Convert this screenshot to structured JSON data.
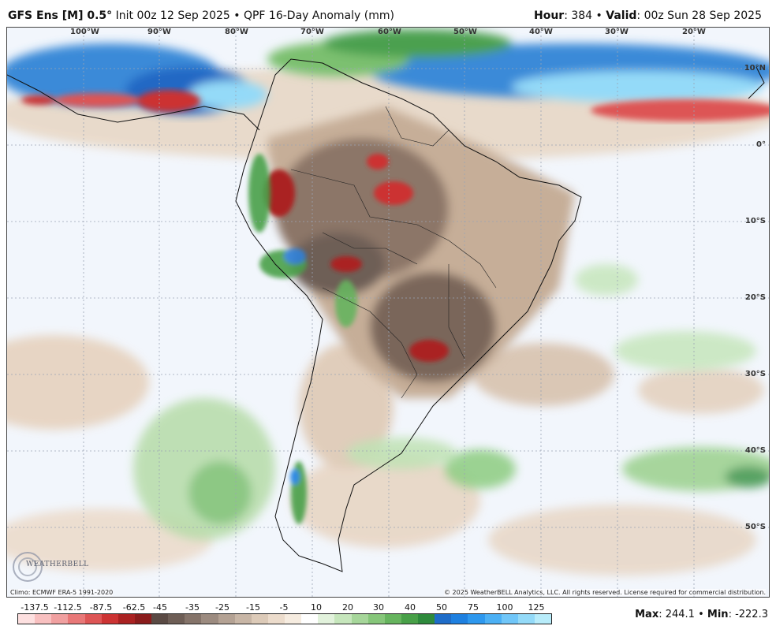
{
  "header": {
    "model": "GFS Ens [M] 0.5",
    "degree": "°",
    "init": "Init 00z 12 Sep 2025",
    "sep": "•",
    "product": "QPF 16-Day Anomaly (mm)",
    "hour_label": "Hour",
    "hour_value": ": 384",
    "valid_label": "Valid",
    "valid_value": ": 00z Sun 28 Sep 2025"
  },
  "map": {
    "lon_labels": [
      "100°W",
      "90°W",
      "80°W",
      "70°W",
      "60°W",
      "50°W",
      "40°W",
      "30°W",
      "20°W"
    ],
    "lat_labels": [
      "10°N",
      "0°",
      "10°S",
      "20°S",
      "30°S",
      "40°S",
      "50°S"
    ],
    "climo": "Climo: ECMWF ERA-5 1991-2020",
    "copyright": "© 2025 WeatherBELL Analytics, LLC. All rights reserved. License required for commercial distribution.",
    "logo_text": "WEATHERBELL"
  },
  "colorbar": {
    "ticks": [
      "-137.5",
      "-112.5",
      "-87.5",
      "-62.5",
      "-45",
      "-35",
      "-25",
      "-15",
      "-5",
      "10",
      "20",
      "30",
      "40",
      "50",
      "75",
      "100",
      "125"
    ],
    "colors": [
      "#fde0e0",
      "#f8c0c0",
      "#f0a0a0",
      "#e87878",
      "#dd5555",
      "#cc3333",
      "#aa2222",
      "#8a1c1c",
      "#5a4a44",
      "#6e5e56",
      "#85746a",
      "#9c8b80",
      "#b4a294",
      "#c8b6a6",
      "#dccab8",
      "#ecdccc",
      "#f6ece0",
      "#ffffff",
      "#e2f2dc",
      "#c6e6bc",
      "#a6d69a",
      "#86c67a",
      "#66b45e",
      "#48a048",
      "#2e8a3c",
      "#1e6cc8",
      "#1e80e0",
      "#2e98ee",
      "#4cb0f4",
      "#70c6f8",
      "#94daf8",
      "#b8ecfa"
    ],
    "max_label": "Max",
    "max_value": "244.1",
    "sep": "•",
    "min_label": "Min",
    "min_value": "-222.3"
  }
}
